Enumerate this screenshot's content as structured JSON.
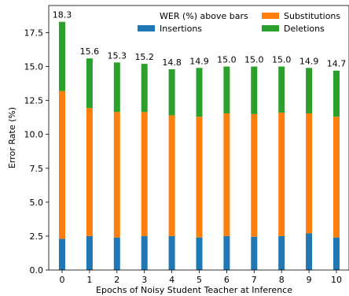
{
  "chart_data": {
    "type": "bar",
    "stacked": true,
    "categories": [
      "0",
      "1",
      "2",
      "3",
      "4",
      "5",
      "6",
      "7",
      "8",
      "9",
      "10"
    ],
    "series": [
      {
        "name": "Insertions",
        "color": "#1f77b4",
        "values": [
          2.3,
          2.5,
          2.4,
          2.5,
          2.5,
          2.4,
          2.5,
          2.45,
          2.5,
          2.7,
          2.4
        ]
      },
      {
        "name": "Substitutions",
        "color": "#ff7f0e",
        "values": [
          10.9,
          9.45,
          9.25,
          9.15,
          8.9,
          8.9,
          9.05,
          9.05,
          9.1,
          8.85,
          8.9
        ]
      },
      {
        "name": "Deletions",
        "color": "#2ca02c",
        "values": [
          5.1,
          3.65,
          3.65,
          3.55,
          3.4,
          3.6,
          3.45,
          3.5,
          3.4,
          3.35,
          3.4
        ]
      }
    ],
    "bar_labels": [
      "18.3",
      "15.6",
      "15.3",
      "15.2",
      "14.8",
      "14.9",
      "15.0",
      "15.0",
      "15.0",
      "14.9",
      "14.7"
    ],
    "xlabel": "Epochs of Noisy Student Teacher at Inference",
    "ylabel": "Error Rate (%)",
    "ylim": [
      0,
      19.5
    ],
    "yticks": [
      0.0,
      2.5,
      5.0,
      7.5,
      10.0,
      12.5,
      15.0,
      17.5
    ],
    "ytick_labels": [
      "0.0",
      "2.5",
      "5.0",
      "7.5",
      "10.0",
      "12.5",
      "15.0",
      "17.5"
    ],
    "legend": {
      "placement": "top-right",
      "title": "WER (%) above bars",
      "entries": [
        "Insertions",
        "Substitutions",
        "Deletions"
      ]
    },
    "grid": false
  }
}
